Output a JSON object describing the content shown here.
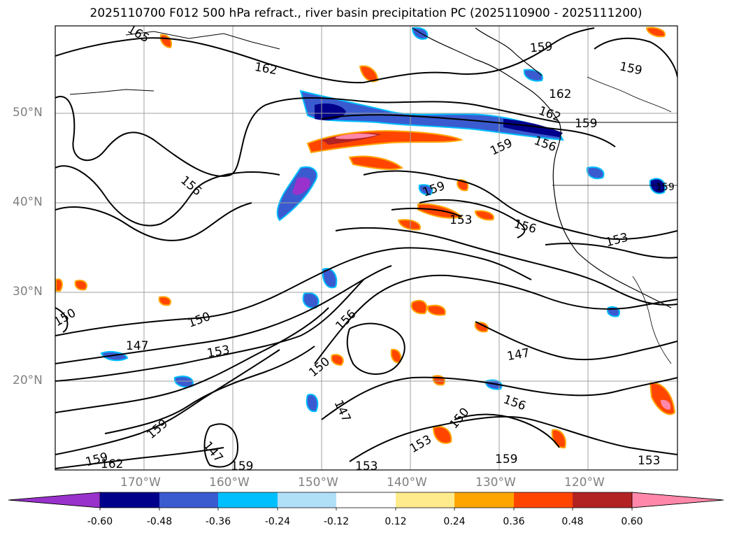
{
  "title": "2025110700 F012 500 hPa refract., river basin precipitation PC (2025110900 - 2025111200)",
  "latitude_labels": [
    "50°N",
    "40°N",
    "30°N",
    "20°N"
  ],
  "longitude_labels": [
    "170°W",
    "160°W",
    "150°W",
    "140°W",
    "130°W",
    "120°W"
  ],
  "contour_labels": [
    "165",
    "162",
    "159",
    "159",
    "162",
    "162",
    "159",
    "159",
    "156",
    "156",
    "159",
    "153",
    "156",
    "153",
    "150",
    "150",
    "156",
    "147",
    "153",
    "150",
    "147",
    "156",
    "147",
    "159",
    "147",
    "150",
    "153",
    "159",
    "159",
    "162",
    "159",
    "153",
    "153",
    "159"
  ],
  "colorbar": {
    "tick_labels": [
      "-0.60",
      "-0.48",
      "-0.36",
      "-0.24",
      "-0.12",
      "0.12",
      "0.24",
      "0.36",
      "0.48",
      "0.60"
    ],
    "colors": [
      "#9932cc",
      "#00008b",
      "#3a5bcf",
      "#00bfff",
      "#b0e0f8",
      "#ffffff",
      "#ffeb8c",
      "#ffa500",
      "#ff4500",
      "#b22222",
      "#ff88aa"
    ]
  },
  "chart_data": {
    "type": "contour map",
    "field": "500 hPa refract. (contours), river basin precipitation PC (shaded)",
    "lat_range": [
      "10°N",
      "60°N"
    ],
    "lon_range": [
      "180°",
      "110°W"
    ],
    "contour_values": [
      147,
      150,
      153,
      156,
      159,
      162,
      165
    ],
    "shading_levels": [
      -0.6,
      -0.48,
      -0.36,
      -0.24,
      -0.12,
      0.12,
      0.24,
      0.36,
      0.48,
      0.6
    ]
  }
}
